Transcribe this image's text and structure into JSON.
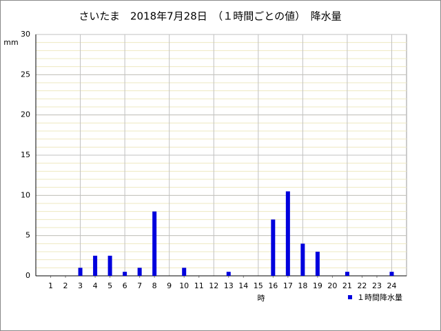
{
  "chart_data": {
    "type": "bar",
    "title": "さいたま　2018年7月28日　（１時間ごとの値）　降水量",
    "y_unit": "mm",
    "x_label": "時",
    "x": [
      1,
      2,
      3,
      4,
      5,
      6,
      7,
      8,
      9,
      10,
      11,
      12,
      13,
      14,
      15,
      16,
      17,
      18,
      19,
      20,
      21,
      22,
      23,
      24
    ],
    "xlim": [
      0,
      25
    ],
    "xticks": [
      1,
      2,
      3,
      4,
      5,
      6,
      7,
      8,
      9,
      10,
      11,
      12,
      13,
      14,
      15,
      16,
      17,
      18,
      19,
      20,
      21,
      22,
      23,
      24
    ],
    "series": [
      {
        "name": "１時間降水量",
        "color": "#0000dd",
        "values": [
          0,
          0,
          1,
          2.5,
          2.5,
          0.5,
          1,
          8,
          0,
          1,
          0,
          0,
          0.5,
          0,
          0,
          7,
          10.5,
          4,
          3,
          0,
          0.5,
          0,
          0,
          0.5
        ]
      }
    ],
    "ylim": [
      0,
      30
    ],
    "yticks": [
      0,
      5,
      10,
      15,
      20,
      25,
      30
    ],
    "grid": true
  }
}
